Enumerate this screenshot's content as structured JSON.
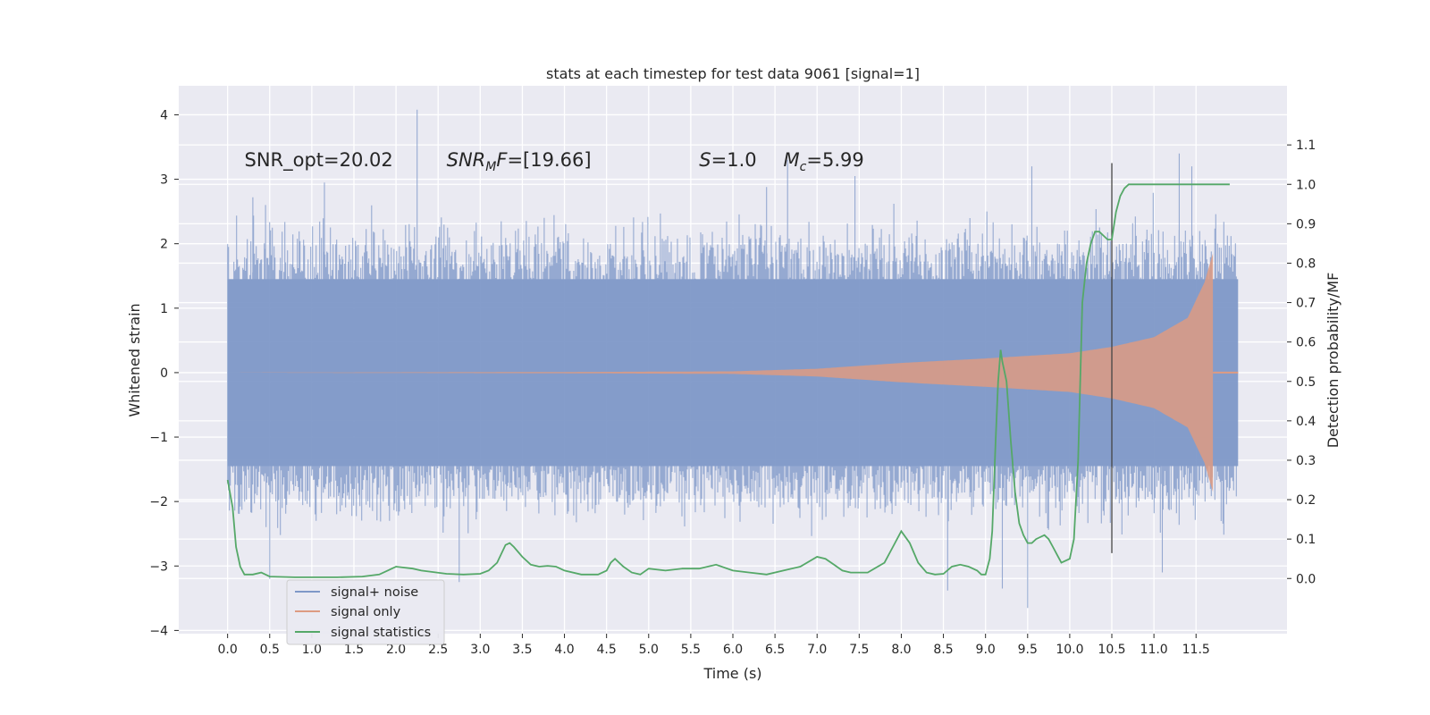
{
  "chart_data": {
    "type": "line",
    "title": "stats at each timestep for test data 9061 [signal=1]",
    "xlabel": "Time (s)",
    "ylabel": "Whitened strain",
    "y2label": "Detection probability/MF",
    "xlim": [
      -0.58,
      12.58
    ],
    "ylim": [
      -4.05,
      4.45
    ],
    "y2lim": [
      -0.14,
      1.25
    ],
    "x_ticks": [
      "0.0",
      "0.5",
      "1.0",
      "1.5",
      "2.0",
      "2.5",
      "3.0",
      "3.5",
      "4.0",
      "4.5",
      "5.0",
      "5.5",
      "6.0",
      "6.5",
      "7.0",
      "7.5",
      "8.0",
      "8.5",
      "9.0",
      "9.5",
      "10.0",
      "10.5",
      "11.0",
      "11.5"
    ],
    "y_ticks": [
      "4",
      "3",
      "2",
      "1",
      "0",
      "−1",
      "−2",
      "−3",
      "−4"
    ],
    "y2_ticks": [
      "1.1",
      "1.0",
      "0.9",
      "0.8",
      "0.7",
      "0.6",
      "0.5",
      "0.4",
      "0.3",
      "0.2",
      "0.1",
      "0.0"
    ],
    "annotations": [
      {
        "pre": "SNR_opt=20.02",
        "italic": "",
        "sub": "",
        "post": "",
        "x": 0.2,
        "y": 3.3
      },
      {
        "pre": "",
        "italic": "SNR",
        "sub": "M",
        "post2": "F",
        "post": "=[19.66]",
        "x": 2.6,
        "y": 3.3
      },
      {
        "pre": "",
        "italic": "S",
        "sub": "",
        "post": "=1.0",
        "x": 5.6,
        "y": 3.3
      },
      {
        "pre": "",
        "italic": "M",
        "sub": "c",
        "post": "=5.99",
        "x": 6.6,
        "y": 3.3
      }
    ],
    "vline": {
      "x": 10.5,
      "y_from": -2.8,
      "y_to": 3.25
    },
    "series": [
      {
        "name": "signal+ noise",
        "color": "#7f98c8",
        "kind": "noise",
        "x_range": [
          0.0,
          12.0
        ],
        "approx_envelope": 1.45,
        "notable_spikes": [
          [
            2.25,
            4.08
          ],
          [
            0.3,
            2.72
          ],
          [
            0.45,
            2.6
          ],
          [
            1.15,
            2.95
          ],
          [
            6.4,
            2.88
          ],
          [
            6.65,
            3.3
          ],
          [
            7.45,
            3.05
          ],
          [
            9.55,
            3.2
          ],
          [
            11.3,
            3.4
          ],
          [
            11.45,
            3.2
          ],
          [
            0.5,
            -3.2
          ],
          [
            2.75,
            -3.25
          ],
          [
            9.5,
            -3.65
          ],
          [
            9.2,
            -3.35
          ],
          [
            11.1,
            -3.1
          ],
          [
            8.55,
            -3.38
          ]
        ]
      },
      {
        "name": "signal only",
        "color": "#dd9b82",
        "kind": "chirp",
        "x_range": [
          0.0,
          12.0
        ],
        "envelope_points": [
          [
            0.0,
            0.0
          ],
          [
            4.0,
            0.01
          ],
          [
            6.0,
            0.02
          ],
          [
            7.0,
            0.06
          ],
          [
            8.0,
            0.15
          ],
          [
            9.0,
            0.22
          ],
          [
            10.0,
            0.3
          ],
          [
            10.5,
            0.4
          ],
          [
            11.0,
            0.55
          ],
          [
            11.4,
            0.85
          ],
          [
            11.6,
            1.4
          ],
          [
            11.7,
            1.85
          ]
        ],
        "min_value": -2.4
      },
      {
        "name": "signal statistics",
        "color": "#55a868",
        "kind": "line",
        "axis": "right",
        "x": [
          0.0,
          0.06,
          0.1,
          0.15,
          0.2,
          0.3,
          0.4,
          0.5,
          0.8,
          1.0,
          1.3,
          1.6,
          1.8,
          1.9,
          2.0,
          2.2,
          2.3,
          2.6,
          2.8,
          3.0,
          3.1,
          3.2,
          3.3,
          3.35,
          3.4,
          3.5,
          3.6,
          3.7,
          3.8,
          3.9,
          4.0,
          4.2,
          4.4,
          4.5,
          4.55,
          4.6,
          4.7,
          4.8,
          4.9,
          5.0,
          5.2,
          5.4,
          5.6,
          5.8,
          6.0,
          6.2,
          6.4,
          6.6,
          6.8,
          7.0,
          7.1,
          7.2,
          7.3,
          7.4,
          7.6,
          7.8,
          7.9,
          8.0,
          8.1,
          8.2,
          8.3,
          8.4,
          8.5,
          8.6,
          8.7,
          8.8,
          8.9,
          8.95,
          9.0,
          9.05,
          9.08,
          9.12,
          9.15,
          9.18,
          9.2,
          9.22,
          9.25,
          9.3,
          9.35,
          9.4,
          9.45,
          9.5,
          9.55,
          9.6,
          9.7,
          9.75,
          9.8,
          9.85,
          9.9,
          10.0,
          10.05,
          10.1,
          10.15,
          10.2,
          10.25,
          10.3,
          10.35,
          10.4,
          10.45,
          10.5,
          10.55,
          10.6,
          10.65,
          10.7,
          10.8,
          11.0,
          11.5,
          11.9
        ],
        "values": [
          0.25,
          0.18,
          0.08,
          0.03,
          0.01,
          0.01,
          0.015,
          0.005,
          0.003,
          0.003,
          0.003,
          0.005,
          0.01,
          0.02,
          0.03,
          0.025,
          0.02,
          0.012,
          0.01,
          0.012,
          0.02,
          0.04,
          0.085,
          0.09,
          0.08,
          0.055,
          0.035,
          0.03,
          0.032,
          0.03,
          0.02,
          0.01,
          0.01,
          0.02,
          0.04,
          0.05,
          0.03,
          0.015,
          0.01,
          0.025,
          0.02,
          0.025,
          0.025,
          0.035,
          0.02,
          0.015,
          0.01,
          0.02,
          0.03,
          0.055,
          0.05,
          0.035,
          0.02,
          0.015,
          0.015,
          0.04,
          0.08,
          0.12,
          0.09,
          0.04,
          0.015,
          0.01,
          0.012,
          0.03,
          0.035,
          0.03,
          0.02,
          0.01,
          0.01,
          0.05,
          0.12,
          0.35,
          0.5,
          0.58,
          0.55,
          0.53,
          0.5,
          0.35,
          0.22,
          0.14,
          0.11,
          0.09,
          0.09,
          0.1,
          0.11,
          0.1,
          0.08,
          0.06,
          0.04,
          0.05,
          0.1,
          0.3,
          0.7,
          0.8,
          0.85,
          0.88,
          0.88,
          0.87,
          0.86,
          0.86,
          0.93,
          0.97,
          0.99,
          1.0,
          1.0,
          1.0,
          1.0,
          1.0
        ]
      }
    ],
    "legend_position": "lower-left",
    "grid": true
  }
}
